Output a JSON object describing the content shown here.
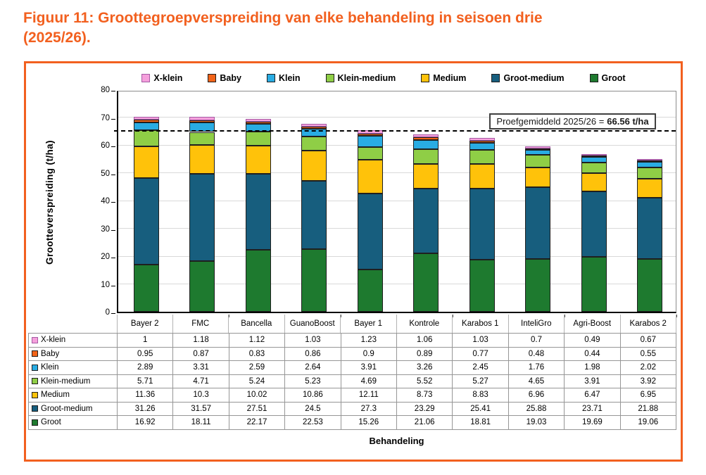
{
  "title": {
    "line1": "Figuur 11: Groottegroepverspreiding van elke behandeling in seisoen drie",
    "line2": "(2025/26)."
  },
  "accent_color": "#F2601F",
  "chart_data": {
    "type": "bar",
    "stacked": true,
    "title": "",
    "xlabel": "Behandeling",
    "ylabel": "Grootteverspreiding (t/ha)",
    "ylim": [
      0,
      80
    ],
    "ytick_step": 10,
    "grid": true,
    "legend_position": "top",
    "has_data_table": true,
    "categories": [
      "Bayer 2",
      "FMC",
      "Bancella",
      "GuanoBoost",
      "Bayer 1",
      "Kontrole",
      "Karabos 1",
      "InteliGro",
      "Agri-Boost",
      "Karabos 2"
    ],
    "series": [
      {
        "name": "X-klein",
        "color": "#F5A0DC",
        "border": "#A55BA4",
        "values": [
          1,
          1.18,
          1.12,
          1.03,
          1.23,
          1.06,
          1.03,
          0.7,
          0.49,
          0.67
        ]
      },
      {
        "name": "Baby",
        "color": "#F26419",
        "border": "#1F1F1F",
        "values": [
          0.95,
          0.87,
          0.83,
          0.86,
          0.9,
          0.89,
          0.77,
          0.48,
          0.44,
          0.55
        ]
      },
      {
        "name": "Klein",
        "color": "#29ACE3",
        "border": "#1F1F1F",
        "values": [
          2.89,
          3.31,
          2.59,
          2.64,
          3.91,
          3.26,
          2.45,
          1.76,
          1.98,
          2.02
        ]
      },
      {
        "name": "Klein-medium",
        "color": "#8FCE46",
        "border": "#1F1F1F",
        "values": [
          5.71,
          4.71,
          5.24,
          5.23,
          4.69,
          5.52,
          5.27,
          4.65,
          3.91,
          3.92
        ]
      },
      {
        "name": "Medium",
        "color": "#FFC20A",
        "border": "#1F1F1F",
        "values": [
          11.36,
          10.3,
          10.02,
          10.86,
          12.11,
          8.73,
          8.83,
          6.96,
          6.47,
          6.95
        ]
      },
      {
        "name": "Groot-medium",
        "color": "#175E7E",
        "border": "#1F1F1F",
        "values": [
          31.26,
          31.57,
          27.51,
          24.5,
          27.3,
          23.29,
          25.41,
          25.88,
          23.71,
          21.88
        ]
      },
      {
        "name": "Groot",
        "color": "#1E7A2F",
        "border": "#1F1F1F",
        "values": [
          16.92,
          18.11,
          22.17,
          22.53,
          15.26,
          21.06,
          18.81,
          19.03,
          19.69,
          19.06
        ]
      }
    ],
    "reference_line": {
      "value_position": 65,
      "label_prefix": "Proefgemiddeld 2025/26 =",
      "label_value": "66.56 t/ha",
      "style": "dashed"
    }
  }
}
